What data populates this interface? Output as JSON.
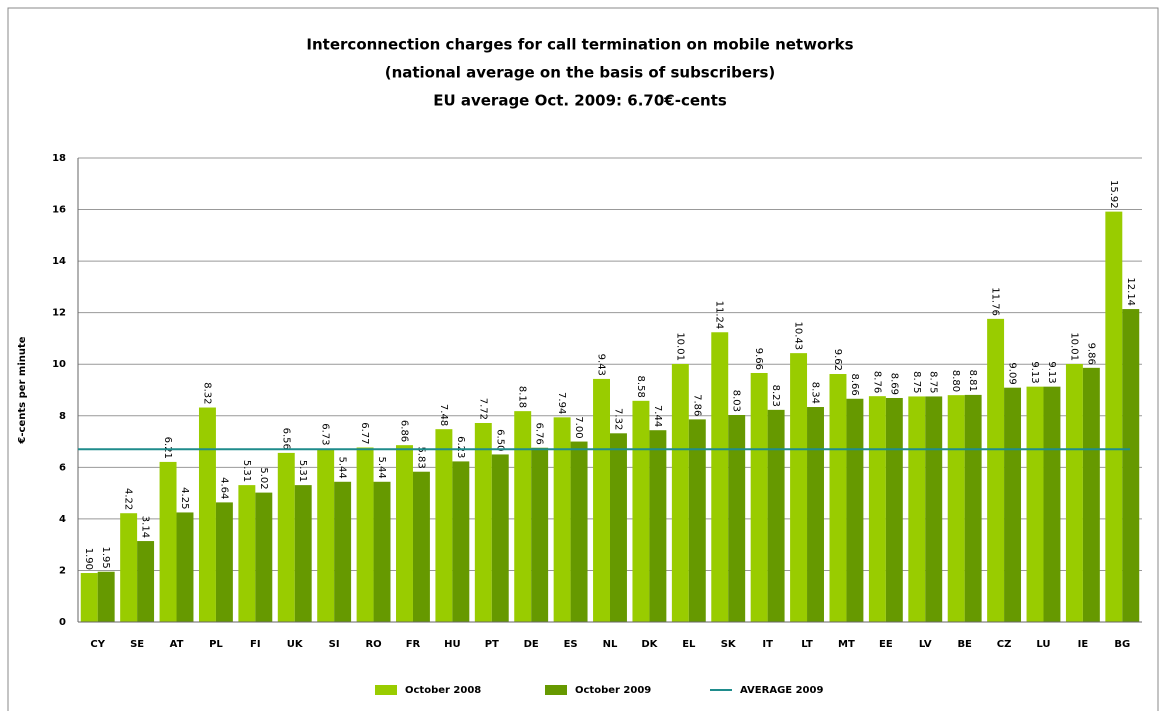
{
  "chart_data": {
    "type": "bar",
    "title_lines": [
      "Interconnection charges for call termination on mobile networks",
      "(national average on the basis of subscribers)",
      "EU average Oct. 2009:  6.70€-cents"
    ],
    "y_label": "€-cents per minute",
    "categories": [
      "CY",
      "SE",
      "AT",
      "PL",
      "FI",
      "UK",
      "SI",
      "RO",
      "FR",
      "HU",
      "PT",
      "DE",
      "ES",
      "NL",
      "DK",
      "EL",
      "SK",
      "IT",
      "LT",
      "MT",
      "EE",
      "LV",
      "BE",
      "CZ",
      "LU",
      "IE",
      "BG"
    ],
    "series": [
      {
        "name": "October 2008",
        "color": "#99cc00",
        "values": [
          1.9,
          4.22,
          6.21,
          8.32,
          5.31,
          6.56,
          6.73,
          6.77,
          6.86,
          7.48,
          7.72,
          8.18,
          7.94,
          9.43,
          8.58,
          10.01,
          11.24,
          9.66,
          10.43,
          9.62,
          8.76,
          8.75,
          8.8,
          11.76,
          9.13,
          10.01,
          15.92
        ],
        "value_labels": [
          "1.90",
          "4.22",
          "6.21",
          "8.32",
          "5.31",
          "6.56",
          "6.73",
          "6.77",
          "6.86",
          "7.48",
          "7.72",
          "8.18",
          "7.94",
          "9.43",
          "8.58",
          "10.01",
          "11.24",
          "9.66",
          "10.43",
          "9.62",
          "8.76",
          "8.75",
          "8.80",
          "11.76",
          "9.13",
          "10.01",
          "15.92"
        ]
      },
      {
        "name": "October 2009",
        "color": "#669900",
        "values": [
          1.95,
          3.14,
          4.25,
          4.64,
          5.02,
          5.31,
          5.44,
          5.44,
          5.83,
          6.23,
          6.5,
          6.76,
          7,
          7.32,
          7.44,
          7.86,
          8.03,
          8.23,
          8.34,
          8.66,
          8.69,
          8.75,
          8.81,
          9.09,
          9.13,
          9.86,
          12.14
        ],
        "value_labels": [
          "1.95",
          "3.14",
          "4.25",
          "4.64",
          "5.02",
          "5.31",
          "5.44",
          "5.44",
          "5.83",
          "6.23",
          "6.50",
          "6.76",
          "7.00",
          "7.32",
          "7.44",
          "7.86",
          "8.03",
          "8.23",
          "8.34",
          "8.66",
          "8.69",
          "8.75",
          "8.81",
          "9.09",
          "9.13",
          "9.86",
          "12.14"
        ]
      }
    ],
    "average": {
      "name": "AVERAGE 2009",
      "color": "#1f8c8c",
      "value": 6.7
    },
    "ylim": [
      0,
      18
    ],
    "yticks": [
      0,
      2,
      4,
      6,
      8,
      10,
      12,
      14,
      16,
      18
    ],
    "grid": true
  }
}
